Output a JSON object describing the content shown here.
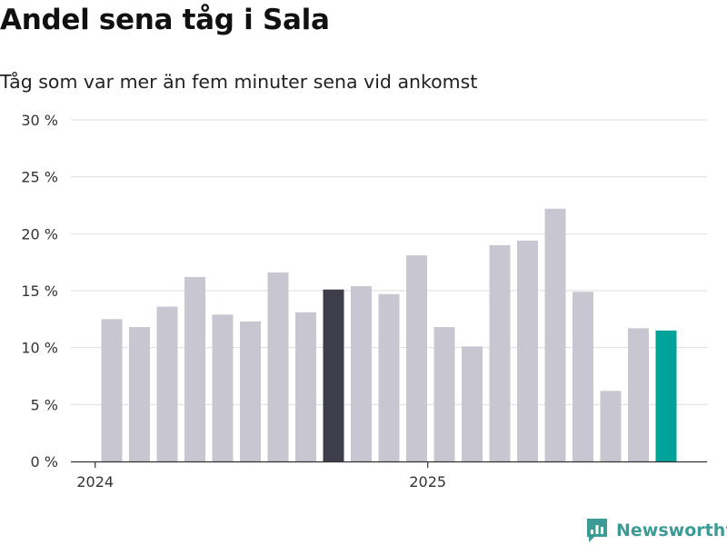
{
  "title": "Andel sena tåg i Sala",
  "subtitle": "Tåg som var mer än fem minuter sena vid ankomst",
  "brand": {
    "name": "Newsworthy",
    "icon": "newsworthy-logo-icon"
  },
  "colors": {
    "bar_default": "#c8c7d1",
    "bar_highlight": "#3e3d4a",
    "bar_latest": "#00a39a",
    "grid": "#dddddd",
    "axis": "#333333",
    "brand": "#3c9b96"
  },
  "chart_data": {
    "type": "bar",
    "title": "Andel sena tåg i Sala",
    "subtitle": "Tåg som var mer än fem minuter sena vid ankomst",
    "xlabel": "",
    "ylabel": "",
    "ylim": [
      0,
      30
    ],
    "y_ticks": [
      0,
      5,
      10,
      15,
      20,
      25,
      30
    ],
    "y_tick_labels": [
      "0 %",
      "5 %",
      "10 %",
      "15 %",
      "20 %",
      "25 %",
      "30 %"
    ],
    "x_ticks": [
      {
        "label": "2024",
        "category_index": -0.6
      },
      {
        "label": "2025",
        "category_index": 11.4
      }
    ],
    "categories": [
      "2024-01",
      "2024-02",
      "2024-03",
      "2024-04",
      "2024-05",
      "2024-06",
      "2024-07",
      "2024-08",
      "2024-09",
      "2024-10",
      "2024-11",
      "2024-12",
      "2025-01",
      "2025-02",
      "2025-03",
      "2025-04",
      "2025-05",
      "2025-06",
      "2025-07",
      "2025-08",
      "2025-09"
    ],
    "values": [
      12.5,
      11.8,
      13.6,
      16.2,
      12.9,
      12.3,
      16.6,
      13.1,
      15.1,
      15.4,
      14.7,
      18.1,
      11.8,
      10.1,
      19.0,
      19.4,
      22.2,
      14.9,
      6.2,
      11.7,
      11.5
    ],
    "highlight_indices": [
      8
    ],
    "latest_index": 20,
    "grid": true
  }
}
